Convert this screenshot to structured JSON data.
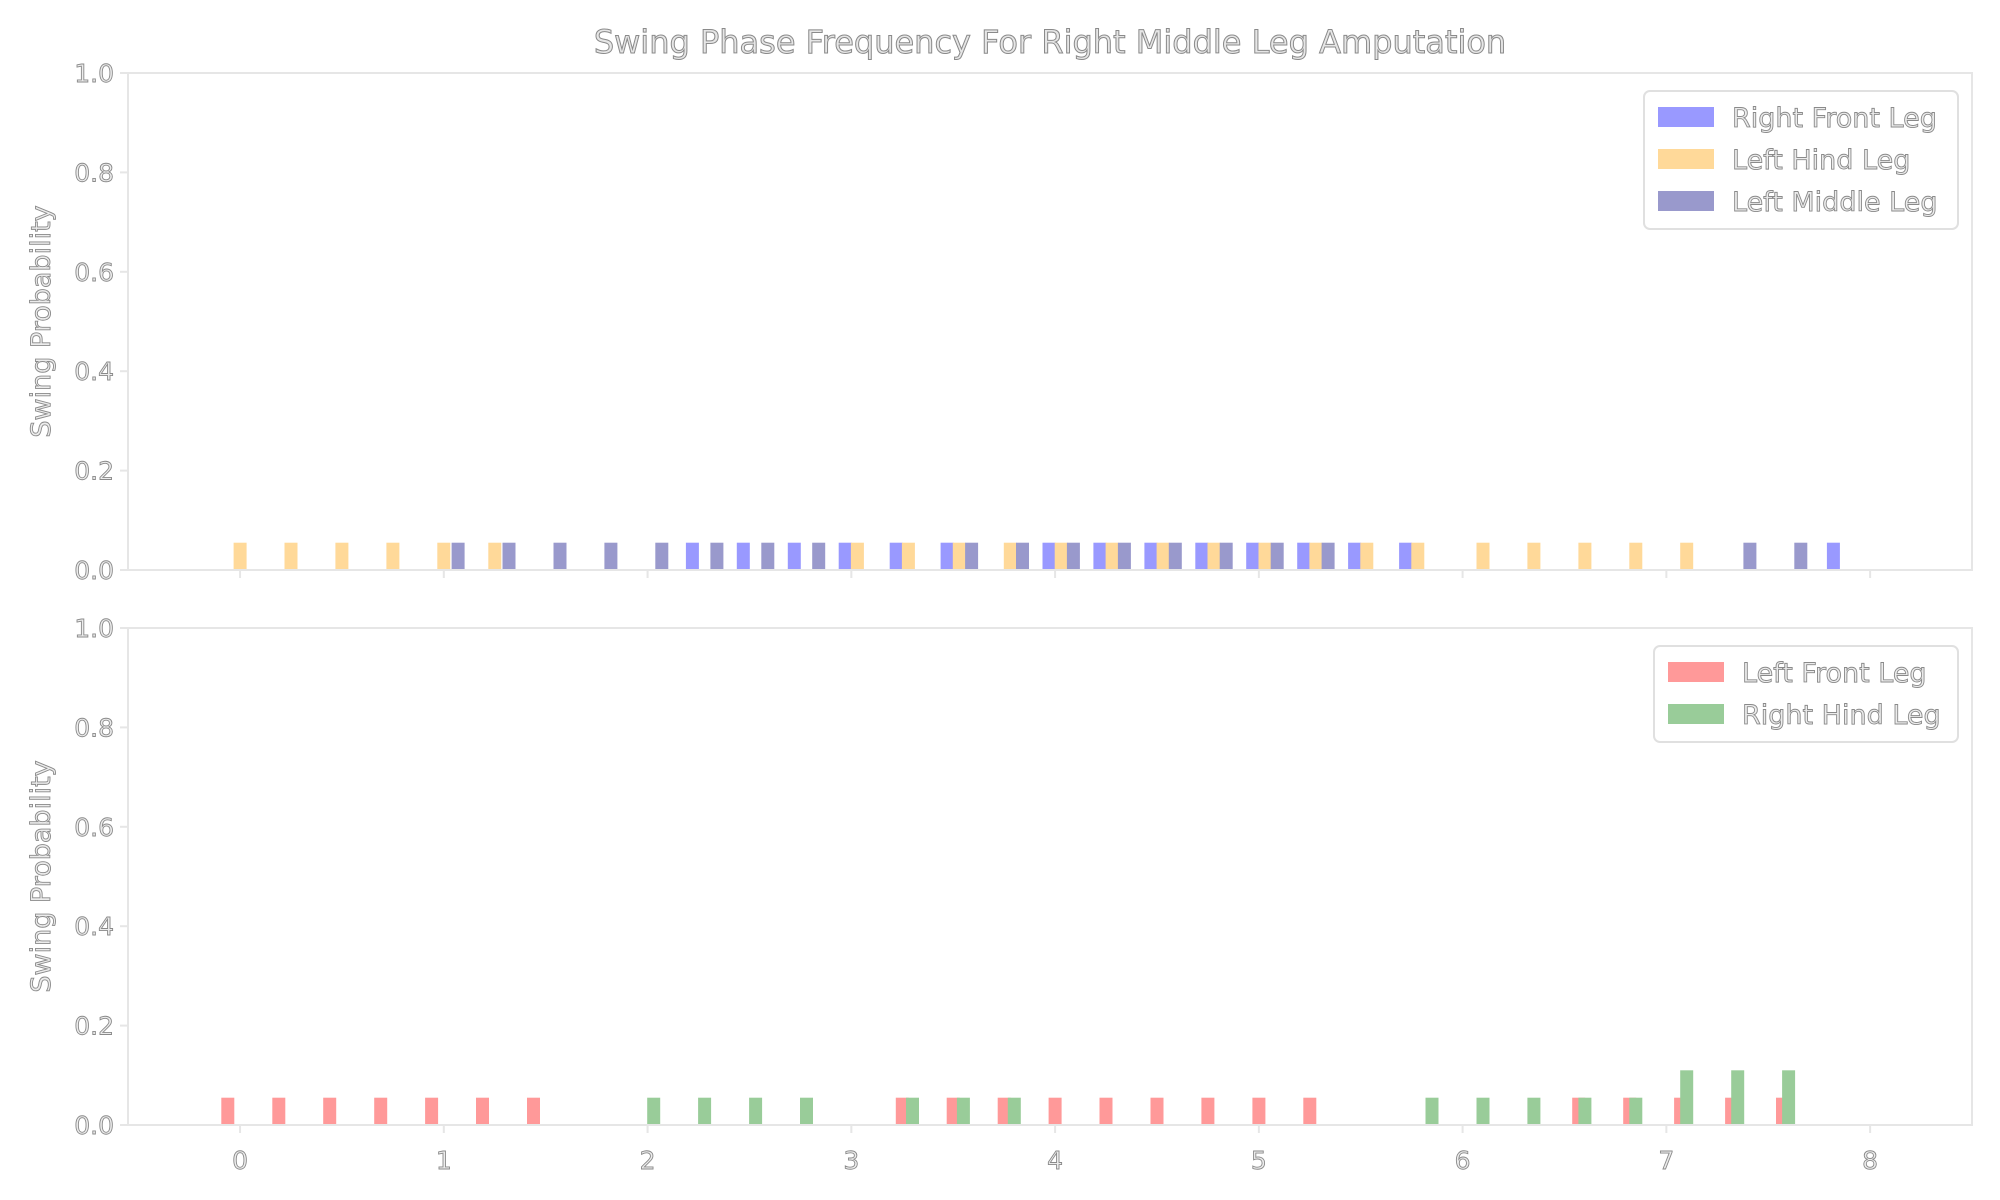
{
  "chart_data": {
    "title": "Swing Phase Frequency For Right Middle Leg Amputation",
    "x_ticks": [
      "0",
      "1",
      "2",
      "3",
      "4",
      "5",
      "6",
      "7",
      "8"
    ],
    "x_tick_values": [
      0,
      1,
      2,
      3,
      4,
      5,
      6,
      7,
      8
    ],
    "y_ticks": [
      "0.0",
      "0.2",
      "0.4",
      "0.6",
      "0.8",
      "1.0"
    ],
    "y_tick_values": [
      0,
      0.2,
      0.4,
      0.6,
      0.8,
      1.0
    ],
    "xlim": [
      -0.55,
      8.5
    ],
    "grid": false,
    "subplots": [
      {
        "type": "bar",
        "ylabel": "Swing Probability",
        "ylim": [
          0,
          1.0
        ],
        "legend_position": "top-right",
        "series": [
          {
            "name": "Right Front Leg",
            "color": "#9999ff",
            "x": [
              2.22,
              2.47,
              2.72,
              2.97,
              3.22,
              3.47,
              3.97,
              4.22,
              4.47,
              4.72,
              4.97,
              5.22,
              5.47,
              5.72,
              7.82
            ],
            "values": [
              0.055,
              0.055,
              0.055,
              0.055,
              0.055,
              0.055,
              0.055,
              0.055,
              0.055,
              0.055,
              0.055,
              0.055,
              0.055,
              0.055,
              0.055
            ]
          },
          {
            "name": "Left Hind Leg",
            "color": "#ffd999",
            "x": [
              0.0,
              0.25,
              0.5,
              0.75,
              1.0,
              1.25,
              3.03,
              3.28,
              3.53,
              3.78,
              4.03,
              4.28,
              4.53,
              4.78,
              5.03,
              5.28,
              5.53,
              5.78,
              6.1,
              6.35,
              6.6,
              6.85,
              7.1
            ],
            "values": [
              0.055,
              0.055,
              0.055,
              0.055,
              0.055,
              0.055,
              0.055,
              0.055,
              0.055,
              0.055,
              0.055,
              0.055,
              0.055,
              0.055,
              0.055,
              0.055,
              0.055,
              0.055,
              0.055,
              0.055,
              0.055,
              0.055,
              0.055
            ]
          },
          {
            "name": "Left Middle Leg",
            "color": "#9999cc",
            "x": [
              1.07,
              1.32,
              1.57,
              1.82,
              2.07,
              2.34,
              2.59,
              2.84,
              3.59,
              3.84,
              4.09,
              4.34,
              4.59,
              4.84,
              5.09,
              5.34,
              7.41,
              7.66
            ],
            "values": [
              0.055,
              0.055,
              0.055,
              0.055,
              0.055,
              0.055,
              0.055,
              0.055,
              0.055,
              0.055,
              0.055,
              0.055,
              0.055,
              0.055,
              0.055,
              0.055,
              0.055,
              0.055
            ]
          }
        ]
      },
      {
        "type": "bar",
        "ylabel": "Swing Probability",
        "ylim": [
          0,
          1.0
        ],
        "legend_position": "top-right",
        "series": [
          {
            "name": "Left Front Leg",
            "color": "#ff9999",
            "x": [
              -0.06,
              0.19,
              0.44,
              0.69,
              0.94,
              1.19,
              1.44,
              3.25,
              3.5,
              3.75,
              4.0,
              4.25,
              4.5,
              4.75,
              5.0,
              5.25,
              6.57,
              6.82,
              7.07,
              7.32,
              7.57
            ],
            "values": [
              0.055,
              0.055,
              0.055,
              0.055,
              0.055,
              0.055,
              0.055,
              0.055,
              0.055,
              0.055,
              0.055,
              0.055,
              0.055,
              0.055,
              0.055,
              0.055,
              0.055,
              0.055,
              0.055,
              0.055,
              0.055
            ]
          },
          {
            "name": "Right Hind Leg",
            "color": "#99cc99",
            "x": [
              2.03,
              2.28,
              2.53,
              2.78,
              3.3,
              3.55,
              3.8,
              5.85,
              6.1,
              6.35,
              6.6,
              6.85,
              7.1,
              7.35,
              7.6
            ],
            "values": [
              0.055,
              0.055,
              0.055,
              0.055,
              0.055,
              0.055,
              0.055,
              0.055,
              0.055,
              0.055,
              0.055,
              0.055,
              0.11,
              0.11,
              0.11
            ]
          }
        ]
      }
    ]
  }
}
